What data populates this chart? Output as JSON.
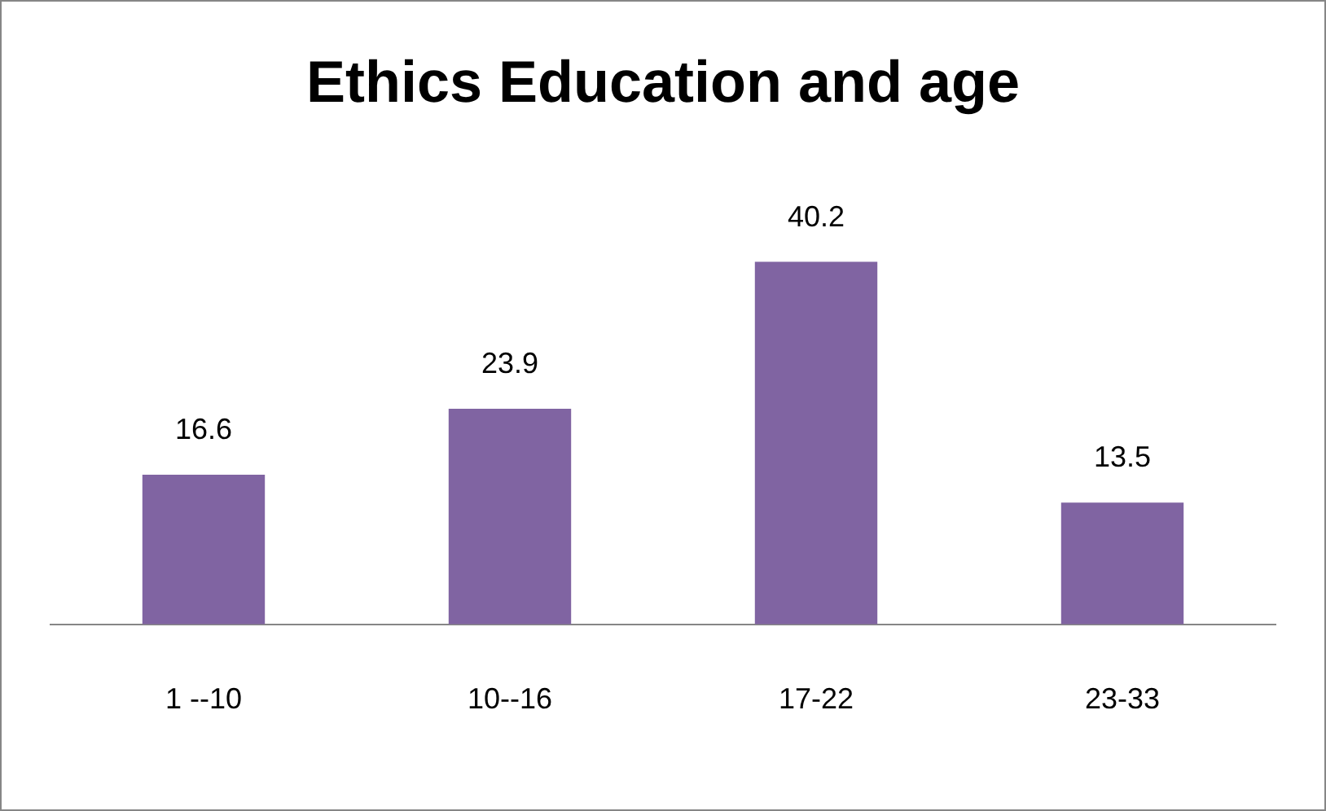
{
  "chart_data": {
    "type": "bar",
    "title": "Ethics Education and age",
    "categories": [
      "1 --10",
      "10--16",
      "17-22",
      "23-33"
    ],
    "values": [
      16.6,
      23.9,
      40.2,
      13.5
    ],
    "color": "#8064a2",
    "data_labels": true,
    "grid": false,
    "legend": false
  }
}
